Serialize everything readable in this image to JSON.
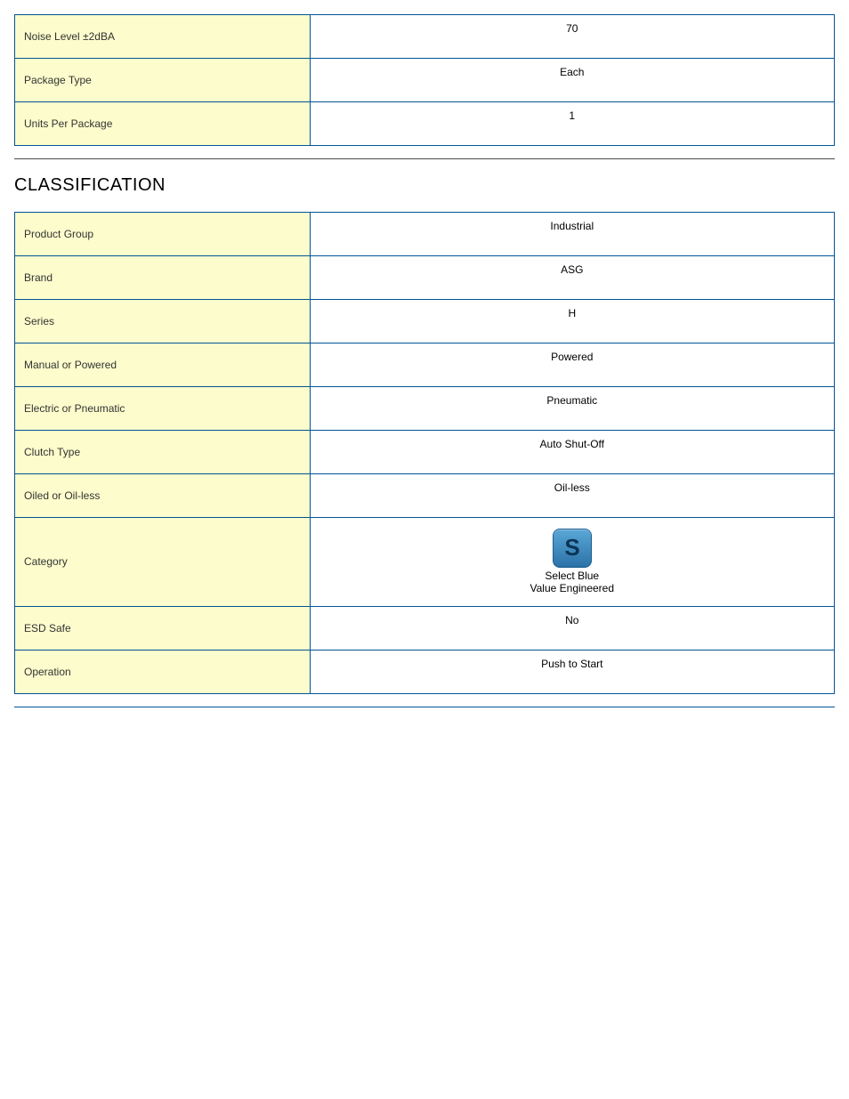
{
  "colors": {
    "table_border": "#005596",
    "label_bg": "#fcfccc",
    "label_text": "#333333",
    "value_bg": "#ffffff",
    "value_text": "#000000",
    "rule_color": "#4a4a4a",
    "icon_grad_top": "#5aa7d6",
    "icon_grad_bottom": "#2b72a8",
    "icon_border": "#1b5d8e",
    "icon_letter": "#0b3556"
  },
  "top_table": {
    "rows": [
      {
        "label": "Noise Level ±2dBA",
        "value": "70"
      },
      {
        "label": "Package Type",
        "value": "Each"
      },
      {
        "label": "Units Per Package",
        "value": "1"
      }
    ]
  },
  "section": {
    "title": "CLASSIFICATION"
  },
  "class_table": {
    "rows": [
      {
        "label": "Product Group",
        "value": "Industrial"
      },
      {
        "label": "Brand",
        "value": "ASG"
      },
      {
        "label": "Series",
        "value": "H"
      },
      {
        "label": "Manual or Powered",
        "value": "Powered"
      },
      {
        "label": "Electric or Pneumatic",
        "value": "Pneumatic"
      },
      {
        "label": "Clutch Type",
        "value": "Auto Shut-Off"
      },
      {
        "label": "Oiled or Oil-less",
        "value": "Oil-less"
      }
    ],
    "category": {
      "label": "Category",
      "icon_letter": "S",
      "line1": "Select Blue",
      "line2": "Value Engineered"
    },
    "rows_after": [
      {
        "label": "ESD Safe",
        "value": "No"
      },
      {
        "label": "Operation",
        "value": "Push to Start"
      }
    ]
  }
}
